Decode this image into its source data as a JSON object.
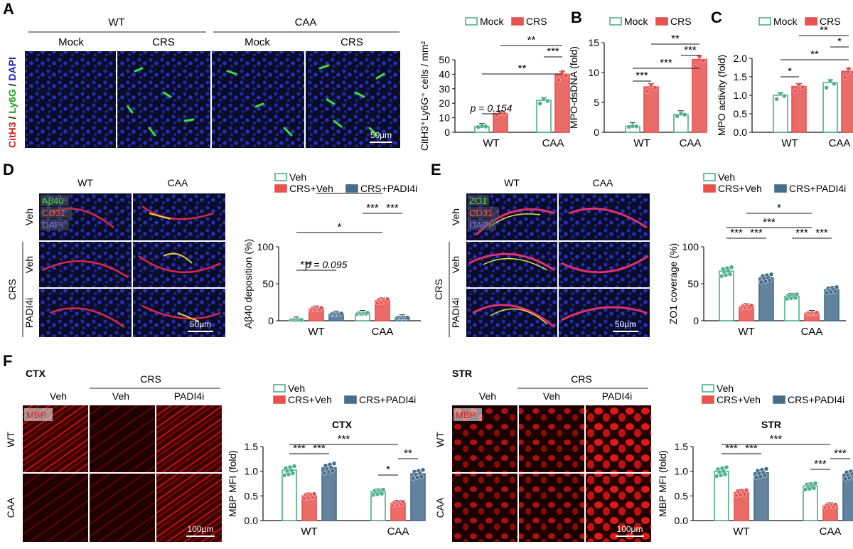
{
  "panels": {
    "A": {
      "letter": "A",
      "groups": [
        "WT",
        "CAA"
      ],
      "cols": [
        "Mock",
        "CRS",
        "Mock",
        "CRS"
      ],
      "stain": {
        "a": "CitH3",
        "b": "Ly6G",
        "c": "DAPI",
        "sep": " / "
      },
      "scale": "50μm"
    },
    "D": {
      "letter": "D",
      "groups": [
        "WT",
        "CAA"
      ],
      "rows": [
        "Veh",
        "Veh",
        "PADI4i"
      ],
      "crs": "CRS",
      "legend": [
        "Aβ40",
        "CD31",
        "DAPI"
      ],
      "scale": "50μm"
    },
    "E": {
      "letter": "E",
      "groups": [
        "WT",
        "CAA"
      ],
      "rows": [
        "Veh",
        "Veh",
        "PADI4i"
      ],
      "crs": "CRS",
      "legend": [
        "ZO1",
        "CD31",
        "DAPI"
      ],
      "scale": "50μm"
    },
    "F": {
      "letter": "F",
      "left": {
        "region": "CTX",
        "crs": "CRS",
        "cols": [
          "Veh",
          "Veh",
          "PADI4i"
        ],
        "rows": [
          "WT",
          "CAA"
        ],
        "stain": "MBP",
        "scale": "100μm"
      },
      "right": {
        "region": "STR",
        "crs": "CRS",
        "cols": [
          "Veh",
          "Veh",
          "PADI4i"
        ],
        "rows": [
          "WT",
          "CAA"
        ],
        "stain": "MBP",
        "scale": "100μm"
      }
    },
    "B": {
      "letter": "B"
    },
    "C": {
      "letter": "C"
    }
  },
  "chart_data": [
    {
      "id": "A",
      "type": "bar",
      "title": "",
      "categories": [
        "WT",
        "CAA"
      ],
      "series": [
        {
          "name": "Mock",
          "values": [
            4,
            22
          ]
        },
        {
          "name": "CRS",
          "values": [
            13,
            40
          ]
        }
      ],
      "ylabel": "CitH3⁺Ly6G⁺ cells / mm²",
      "ylim": [
        0,
        50
      ],
      "yticks": [
        "0",
        "10",
        "20",
        "30",
        "40",
        "50"
      ],
      "annotations": [
        "p = 0.154",
        "**",
        "***",
        "**"
      ]
    },
    {
      "id": "B",
      "type": "bar",
      "title": "",
      "categories": [
        "WT",
        "CAA"
      ],
      "series": [
        {
          "name": "Mock",
          "values": [
            1,
            3
          ]
        },
        {
          "name": "CRS",
          "values": [
            7.6,
            12.2
          ]
        }
      ],
      "ylabel": "MPO-dsDNA (fold)",
      "ylim": [
        0,
        15
      ],
      "yticks": [
        "0",
        "5",
        "10",
        "15"
      ],
      "annotations": [
        "***",
        "***",
        "***",
        "**"
      ]
    },
    {
      "id": "C",
      "type": "bar",
      "title": "",
      "categories": [
        "WT",
        "CAA"
      ],
      "series": [
        {
          "name": "Mock",
          "values": [
            1.0,
            1.34
          ]
        },
        {
          "name": "CRS",
          "values": [
            1.24,
            1.65
          ]
        }
      ],
      "ylabel": "MPO activity (fold)",
      "ylim": [
        0,
        2.0
      ],
      "yticks": [
        "0.0",
        "0.5",
        "1.0",
        "1.5",
        "2.0"
      ],
      "annotations": [
        "*",
        "**",
        "*",
        "**"
      ]
    },
    {
      "id": "D",
      "type": "bar",
      "title": "",
      "categories": [
        "WT",
        "CAA"
      ],
      "series": [
        {
          "name": "Veh",
          "values": [
            1,
            10
          ]
        },
        {
          "name": "CRS+Veh",
          "values": [
            16,
            27
          ]
        },
        {
          "name": "CRS+PADI4i",
          "values": [
            9,
            4
          ]
        }
      ],
      "ylabel": "Aβ40 deposition (%)",
      "ylim": [
        0,
        100
      ],
      "yticks": [
        "0",
        "50",
        "100"
      ],
      "annotations": [
        "***",
        "p = 0.095",
        "*",
        "***",
        "***",
        "*"
      ]
    },
    {
      "id": "E",
      "type": "bar",
      "title": "",
      "categories": [
        "WT",
        "CAA"
      ],
      "series": [
        {
          "name": "Veh",
          "values": [
            67,
            33
          ]
        },
        {
          "name": "CRS+Veh",
          "values": [
            19,
            10
          ]
        },
        {
          "name": "CRS+PADI4i",
          "values": [
            58,
            42
          ]
        }
      ],
      "ylabel": "ZO1 coverage (%)",
      "ylim": [
        0,
        100
      ],
      "yticks": [
        "0",
        "50",
        "100"
      ],
      "annotations": [
        "***",
        "***",
        "***",
        "***",
        "***",
        "*"
      ]
    },
    {
      "id": "F-CTX",
      "type": "bar",
      "title": "CTX",
      "categories": [
        "WT",
        "CAA"
      ],
      "series": [
        {
          "name": "Veh",
          "values": [
            1.02,
            0.58
          ]
        },
        {
          "name": "CRS+Veh",
          "values": [
            0.5,
            0.35
          ]
        },
        {
          "name": "CRS+PADI4i",
          "values": [
            1.07,
            0.95
          ]
        }
      ],
      "ylabel": "MBP MFI (fold)",
      "ylim": [
        0,
        1.5
      ],
      "yticks": [
        "0.0",
        "0.5",
        "1.0",
        "1.5"
      ],
      "annotations": [
        "***",
        "***",
        "***",
        "*",
        "**"
      ]
    },
    {
      "id": "F-STR",
      "type": "bar",
      "title": "STR",
      "categories": [
        "WT",
        "CAA"
      ],
      "series": [
        {
          "name": "Veh",
          "values": [
            1.0,
            0.7
          ]
        },
        {
          "name": "CRS+Veh",
          "values": [
            0.57,
            0.3
          ]
        },
        {
          "name": "CRS+PADI4i",
          "values": [
            0.97,
            0.94
          ]
        }
      ],
      "ylabel": "MBP MFI (fold)",
      "ylim": [
        0,
        1.5
      ],
      "yticks": [
        "0.0",
        "0.5",
        "1.0",
        "1.5"
      ],
      "annotations": [
        "***",
        "***",
        "***",
        "***",
        "***"
      ]
    }
  ],
  "colors": {
    "Mock": "#4daf8e",
    "Veh": "#4daf8e",
    "CRS": "#e8514e",
    "CRS+Veh": "#e8514e",
    "CRS+PADI4i": "#466d8c"
  }
}
